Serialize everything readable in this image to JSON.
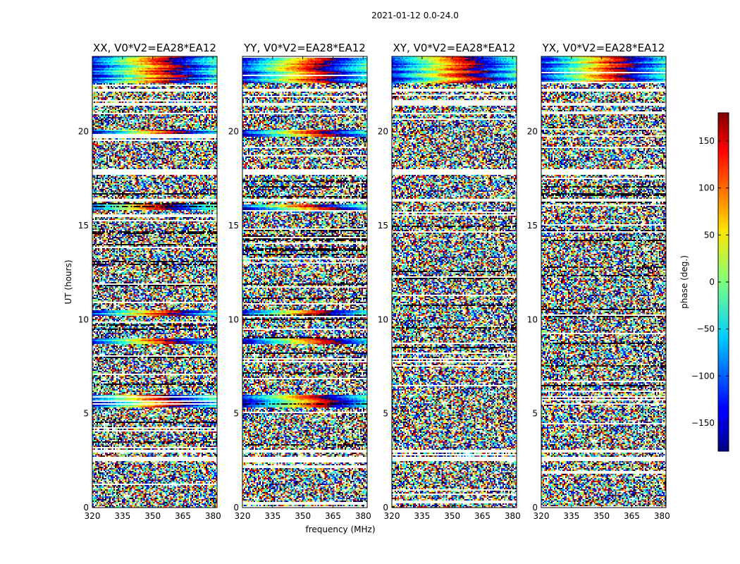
{
  "chart_data": {
    "type": "heatmap",
    "suptitle": "2021-01-12 0.0-24.0",
    "xlabel": "frequency (MHz)",
    "ylabel": "UT (hours)",
    "xlim": [
      320,
      382
    ],
    "ylim": [
      0,
      24
    ],
    "xticks": [
      320,
      335,
      350,
      365,
      380
    ],
    "yticks": [
      0,
      5,
      10,
      15,
      20
    ],
    "panels": [
      {
        "title": "XX, V0*V2=EA28*EA12",
        "coherent_bands": [
          [
            22.6,
            24.0
          ],
          [
            19.7,
            20.1
          ],
          [
            15.8,
            16.1
          ],
          [
            10.2,
            10.5
          ],
          [
            8.7,
            9.0
          ],
          [
            5.3,
            6.0
          ]
        ]
      },
      {
        "title": "YY, V0*V2=EA28*EA12",
        "coherent_bands": [
          [
            22.6,
            24.0
          ],
          [
            19.7,
            20.1
          ],
          [
            15.8,
            16.1
          ],
          [
            10.2,
            10.5
          ],
          [
            8.7,
            9.0
          ],
          [
            5.3,
            6.0
          ]
        ]
      },
      {
        "title": "XY, V0*V2=EA28*EA12",
        "coherent_bands": [
          [
            22.6,
            24.0
          ]
        ]
      },
      {
        "title": "YX, V0*V2=EA28*EA12",
        "coherent_bands": [
          [
            22.6,
            24.0
          ]
        ]
      }
    ],
    "gaps_hours": [
      [
        22.1,
        22.3
      ],
      [
        21.4,
        21.5
      ],
      [
        20.9,
        21.0
      ],
      [
        17.7,
        18.0
      ],
      [
        16.3,
        16.4
      ],
      [
        2.9,
        3.1
      ],
      [
        2.5,
        2.7
      ]
    ],
    "colorbar": {
      "label": "phase (deg.)",
      "range": [
        -180,
        180
      ],
      "ticks": [
        150,
        100,
        50,
        0,
        -50,
        -100,
        -150
      ],
      "tick_labels": [
        "150",
        "100",
        "50",
        "0",
        "−50",
        "−100",
        "−150"
      ],
      "colormap": "jet"
    }
  }
}
